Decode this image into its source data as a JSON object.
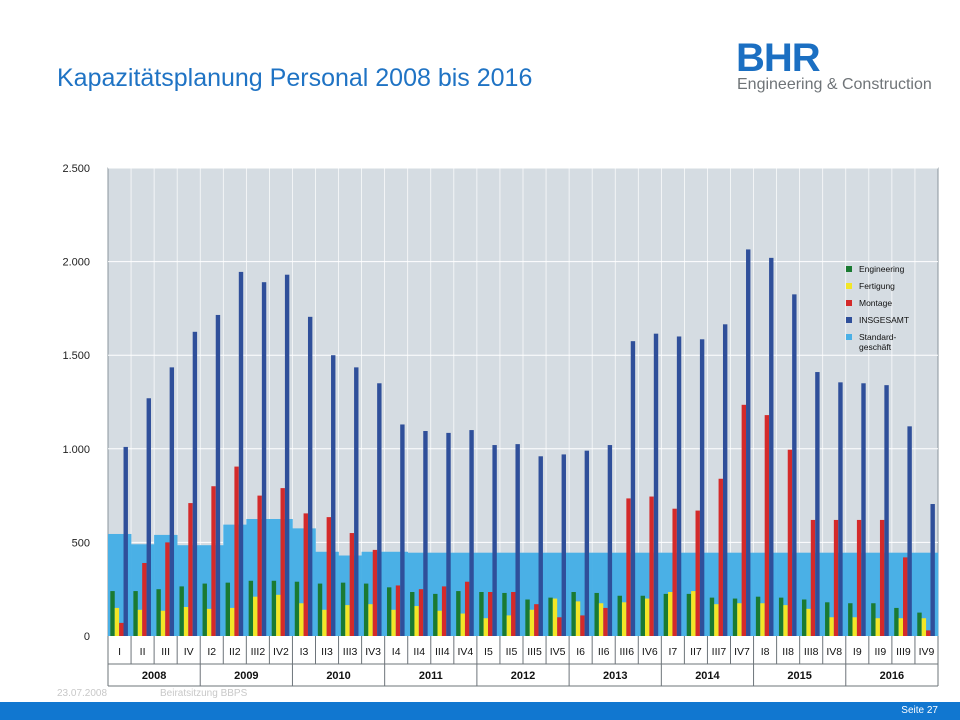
{
  "slide": {
    "title": "Kapazitätsplanung Personal 2008 bis 2016",
    "date": "23.07.2008",
    "event": "Beiratsitzung BBPS",
    "page": "Seite 27"
  },
  "logo": {
    "word": "BHR",
    "subtitle": "Engineering & Construction",
    "color": "#1b6fc2"
  },
  "colors": {
    "title": "#1f73c4",
    "footer_bar": "#1177d0"
  },
  "chart_data": {
    "type": "bar",
    "ylim": [
      0,
      2500
    ],
    "yticks": [
      0,
      500,
      1000,
      1500,
      2000,
      2500
    ],
    "ytick_labels": [
      "0",
      "500",
      "1.000",
      "1.500",
      "2.000",
      "2.500"
    ],
    "grid": true,
    "legend_position": "top-right",
    "categories": [
      "I",
      "II",
      "III",
      "IV",
      "I2",
      "II2",
      "III2",
      "IV2",
      "I3",
      "II3",
      "III3",
      "IV3",
      "I4",
      "II4",
      "III4",
      "IV4",
      "I5",
      "II5",
      "III5",
      "IV5",
      "I6",
      "II6",
      "III6",
      "IV6",
      "I7",
      "II7",
      "III7",
      "IV7",
      "I8",
      "II8",
      "III8",
      "IV8",
      "I9",
      "II9",
      "III9",
      "IV9"
    ],
    "years": [
      "2008",
      "2009",
      "2010",
      "2011",
      "2012",
      "2013",
      "2014",
      "2015",
      "2016"
    ],
    "series": [
      {
        "name": "Engineering",
        "color": "#1a7a32",
        "values": [
          240,
          240,
          250,
          265,
          280,
          285,
          295,
          295,
          290,
          280,
          285,
          280,
          260,
          235,
          225,
          240,
          235,
          230,
          195,
          205,
          235,
          230,
          215,
          215,
          225,
          225,
          205,
          200,
          210,
          205,
          195,
          180,
          175,
          175,
          150,
          125
        ]
      },
      {
        "name": "Fertigung",
        "color": "#f2e627",
        "values": [
          150,
          140,
          135,
          155,
          145,
          150,
          210,
          220,
          175,
          140,
          165,
          170,
          140,
          160,
          135,
          120,
          95,
          110,
          140,
          200,
          185,
          175,
          180,
          200,
          235,
          240,
          170,
          175,
          175,
          165,
          145,
          100,
          100,
          95,
          95,
          95
        ]
      },
      {
        "name": "Montage",
        "color": "#d42a2a",
        "values": [
          70,
          390,
          500,
          710,
          800,
          905,
          750,
          790,
          655,
          635,
          550,
          460,
          270,
          250,
          265,
          290,
          235,
          235,
          170,
          100,
          110,
          150,
          735,
          745,
          680,
          670,
          840,
          1235,
          1180,
          995,
          620,
          620,
          620,
          620,
          420,
          30
        ]
      },
      {
        "name": "INSGESAMT",
        "color": "#2f4f9a",
        "values": [
          1010,
          1270,
          1435,
          1625,
          1715,
          1945,
          1890,
          1930,
          1705,
          1500,
          1435,
          1350,
          1130,
          1095,
          1085,
          1100,
          1020,
          1025,
          960,
          970,
          990,
          1020,
          1575,
          1615,
          1600,
          1585,
          1665,
          2065,
          2020,
          1825,
          1410,
          1355,
          1350,
          1340,
          1120,
          705
        ]
      },
      {
        "name": "Standard-geschäft",
        "legend": [
          "Standard-",
          "geschäft"
        ],
        "color": "#4ab0e6",
        "values": [
          545,
          490,
          540,
          485,
          485,
          595,
          625,
          625,
          575,
          450,
          430,
          450,
          450,
          445,
          445,
          445,
          445,
          445,
          445,
          445,
          445,
          445,
          445,
          445,
          445,
          445,
          445,
          445,
          445,
          445,
          445,
          445,
          445,
          445,
          445,
          445
        ]
      }
    ]
  }
}
